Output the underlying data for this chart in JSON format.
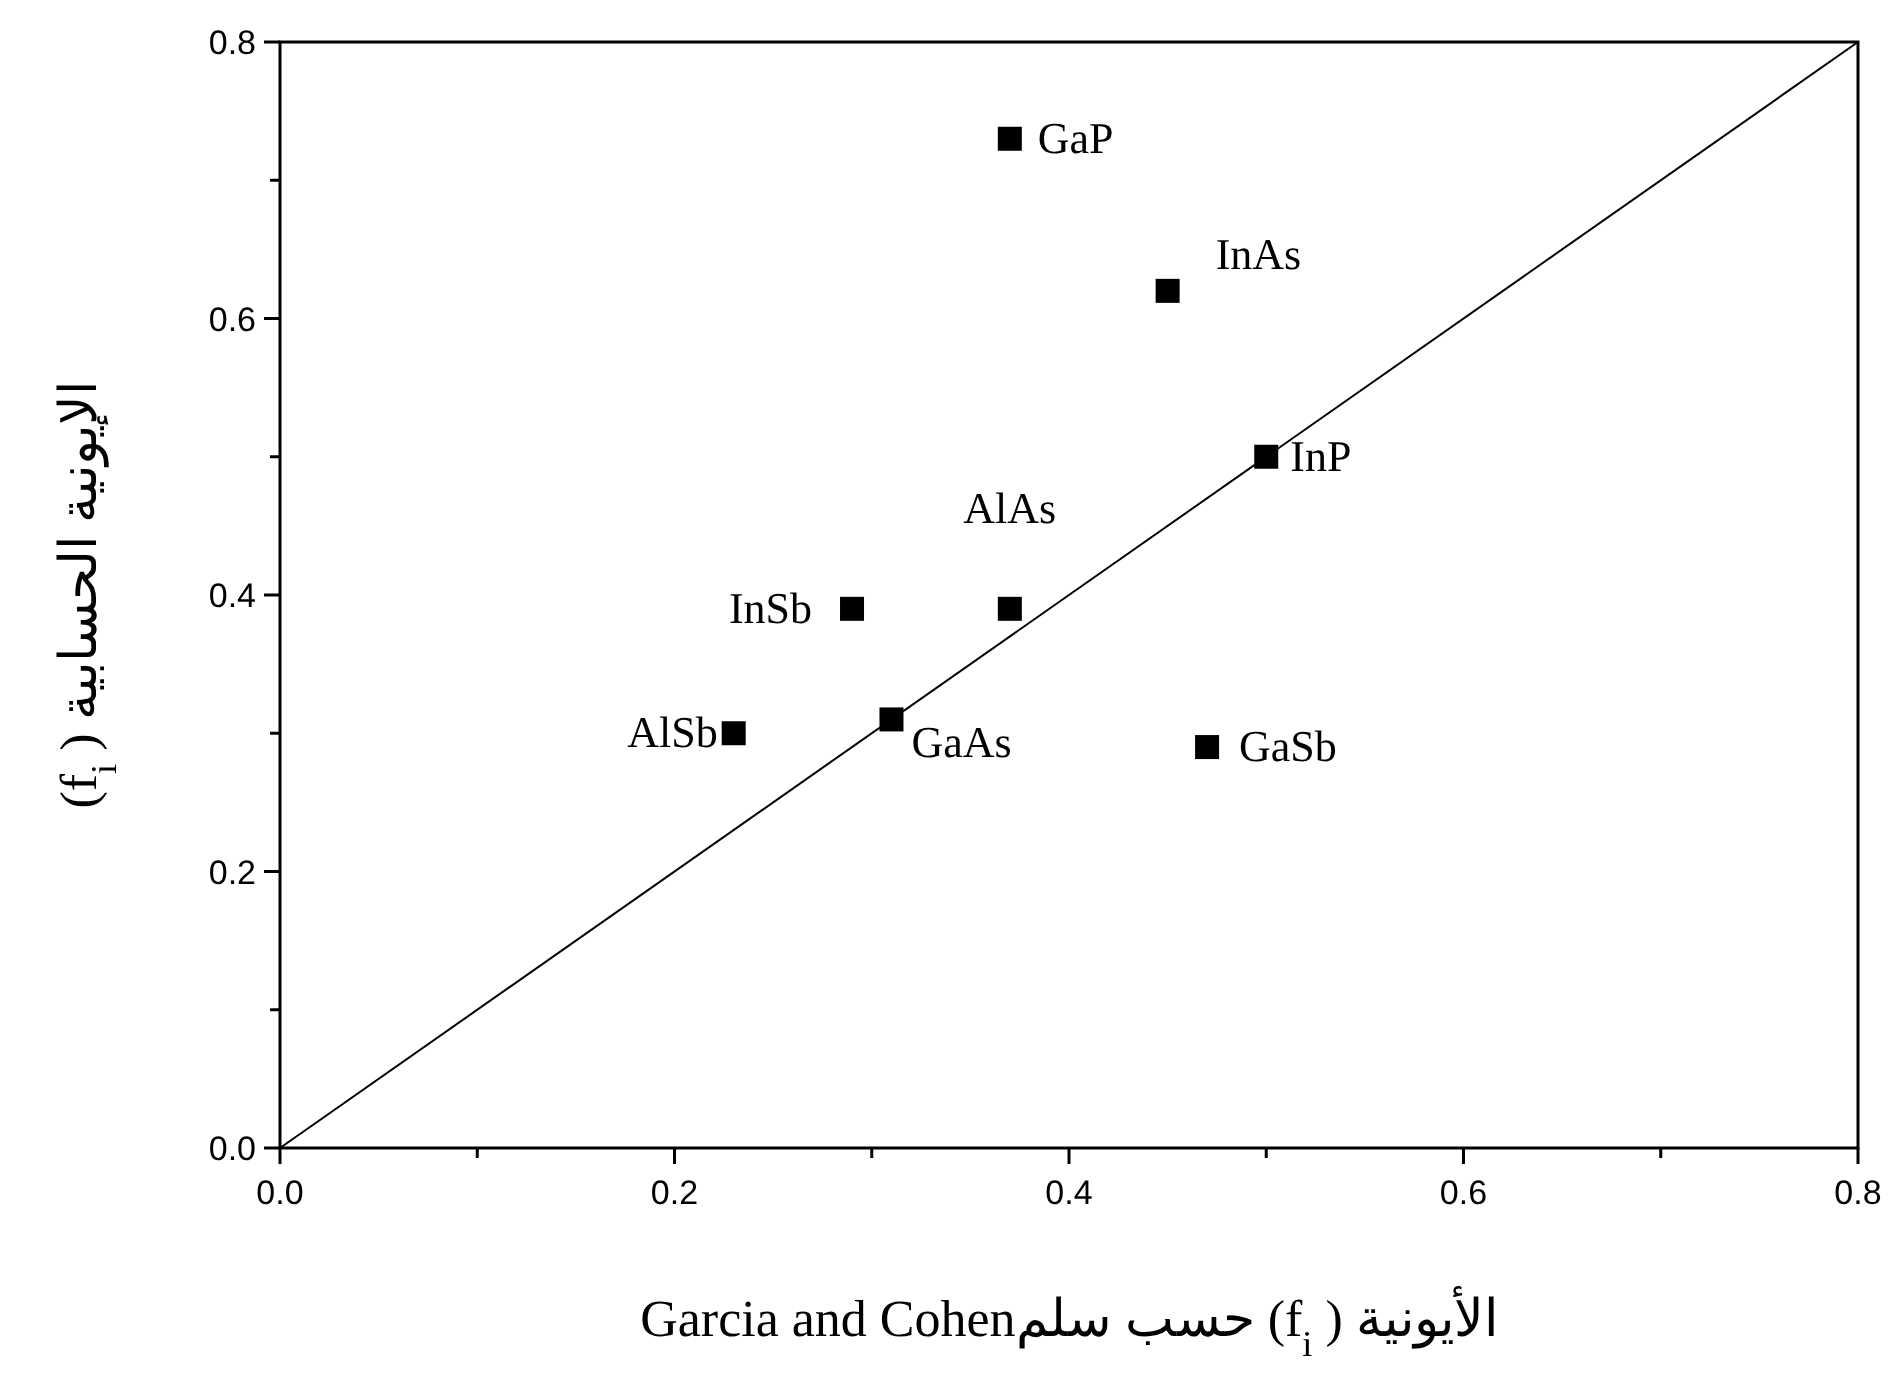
{
  "chart_data": {
    "type": "scatter",
    "xlabel": "الأيونية ( f$_{i}$) حسب سلمGarcia and Cohen",
    "ylabel": "الإيونية الحسابية ( f$_{i}$)",
    "xlim": [
      0,
      0.8
    ],
    "ylim": [
      0,
      0.8
    ],
    "xticks": [
      {
        "value": 0,
        "label": "0.0"
      },
      {
        "value": 0.1,
        "label": null
      },
      0.2,
      {
        "value": 0.3,
        "label": null
      },
      0.4,
      {
        "value": 0.5,
        "label": null
      },
      0.6,
      {
        "value": 0.7,
        "label": null
      },
      0.8
    ],
    "yticks": [
      {
        "value": 0,
        "label": "0.0"
      },
      {
        "value": 0.1,
        "label": null
      },
      0.2,
      {
        "value": 0.3,
        "label": null
      },
      0.4,
      {
        "value": 0.5,
        "label": null
      },
      0.6,
      {
        "value": 0.7,
        "label": null
      },
      0.8
    ],
    "grid": false,
    "series": [
      {
        "type": "line",
        "color": "#000000",
        "marker": "none",
        "line_style": "solid",
        "x": [
          0,
          0.8
        ],
        "values": [
          0,
          0.8
        ]
      },
      {
        "color": "#000000",
        "marker": "square",
        "x": [
          0.37,
          0.45,
          0.5,
          0.37,
          0.29,
          0.31,
          0.23,
          0.47
        ],
        "values": [
          0.73,
          0.62,
          0.5,
          0.39,
          0.39,
          0.31,
          0.3,
          0.29
        ]
      }
    ],
    "annotations": [
      {
        "text": "GaP",
        "x": 0.37,
        "y": 0.73
      },
      {
        "text": "InAs",
        "x": 0.45,
        "y": 0.62
      },
      {
        "text": "InP",
        "x": 0.5,
        "y": 0.5
      },
      {
        "text": "AlAs",
        "x": 0.37,
        "y": 0.39
      },
      {
        "text": "InSb",
        "x": 0.29,
        "y": 0.39
      },
      {
        "text": "GaAs",
        "x": 0.31,
        "y": 0.31
      },
      {
        "text": "AlSb",
        "x": 0.23,
        "y": 0.3
      },
      {
        "text": "GaSb",
        "x": 0.47,
        "y": 0.29
      }
    ]
  }
}
